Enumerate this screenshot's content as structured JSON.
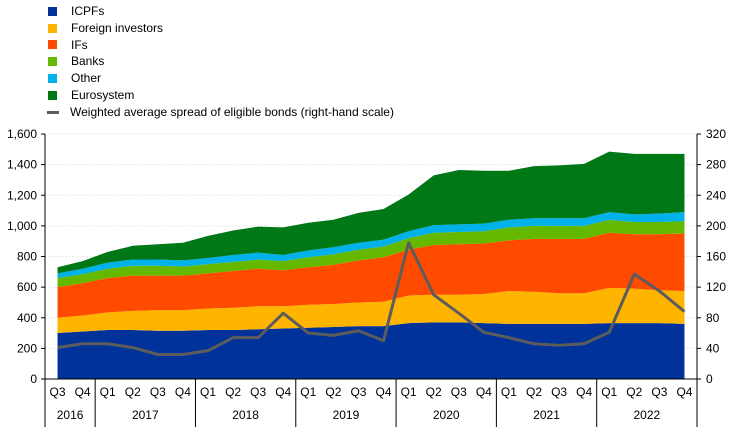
{
  "chart_data": {
    "type": "area",
    "stacked": true,
    "categories": [
      "Q3",
      "Q4",
      "Q1",
      "Q2",
      "Q3",
      "Q4",
      "Q1",
      "Q2",
      "Q3",
      "Q4",
      "Q1",
      "Q2",
      "Q3",
      "Q4",
      "Q1",
      "Q2",
      "Q3",
      "Q4",
      "Q1",
      "Q2",
      "Q3",
      "Q4",
      "Q1",
      "Q2",
      "Q3",
      "Q4"
    ],
    "years": [
      {
        "label": "2016",
        "quarters": 2
      },
      {
        "label": "2017",
        "quarters": 4
      },
      {
        "label": "2018",
        "quarters": 4
      },
      {
        "label": "2019",
        "quarters": 4
      },
      {
        "label": "2020",
        "quarters": 4
      },
      {
        "label": "2021",
        "quarters": 4
      },
      {
        "label": "2022",
        "quarters": 4
      }
    ],
    "ylim": [
      0,
      1600
    ],
    "yticks": [
      0,
      200,
      400,
      600,
      800,
      1000,
      1200,
      1400,
      1600
    ],
    "ytick_labels": [
      "0",
      "200",
      "400",
      "600",
      "800",
      "1,000",
      "1,200",
      "1,400",
      "1,600"
    ],
    "y2lim": [
      0,
      320
    ],
    "y2ticks": [
      0,
      40,
      80,
      120,
      160,
      200,
      240,
      280,
      320
    ],
    "grid": true,
    "legend_position": "top-left",
    "series": [
      {
        "name": "ICPFs",
        "color": "#003299",
        "values": [
          300,
          310,
          320,
          320,
          315,
          315,
          320,
          320,
          325,
          330,
          335,
          340,
          345,
          345,
          365,
          370,
          370,
          365,
          360,
          360,
          360,
          360,
          365,
          365,
          365,
          360
        ]
      },
      {
        "name": "Foreign investors",
        "color": "#FFB400",
        "values": [
          100,
          105,
          115,
          125,
          135,
          135,
          140,
          145,
          150,
          145,
          150,
          150,
          155,
          160,
          180,
          180,
          180,
          190,
          215,
          210,
          200,
          200,
          230,
          225,
          215,
          215
        ]
      },
      {
        "name": "IFs",
        "color": "#FF4B00",
        "values": [
          200,
          210,
          225,
          230,
          225,
          225,
          230,
          240,
          245,
          235,
          245,
          255,
          275,
          290,
          300,
          325,
          330,
          330,
          330,
          345,
          355,
          355,
          360,
          355,
          365,
          375
        ]
      },
      {
        "name": "Banks",
        "color": "#65B800",
        "values": [
          60,
          60,
          60,
          65,
          65,
          60,
          60,
          60,
          60,
          60,
          65,
          70,
          70,
          70,
          75,
          80,
          80,
          80,
          85,
          85,
          85,
          85,
          85,
          80,
          80,
          80
        ]
      },
      {
        "name": "Other",
        "color": "#00B1EA",
        "values": [
          30,
          35,
          40,
          40,
          40,
          40,
          40,
          45,
          45,
          40,
          45,
          45,
          45,
          45,
          45,
          50,
          50,
          50,
          50,
          50,
          50,
          50,
          50,
          50,
          55,
          60
        ]
      },
      {
        "name": "Eurosystem",
        "color": "#007816",
        "values": [
          40,
          50,
          70,
          90,
          100,
          115,
          145,
          160,
          170,
          180,
          180,
          180,
          195,
          200,
          240,
          325,
          355,
          345,
          320,
          340,
          345,
          355,
          395,
          395,
          390,
          380
        ]
      }
    ],
    "line_series": {
      "name": "Weighted average spread of eligible bonds (right-hand scale)",
      "color": "#5C5C5C",
      "axis": "right",
      "values": [
        41,
        46,
        46,
        41,
        32,
        32,
        37,
        54,
        54,
        86,
        60,
        57,
        63,
        50,
        178,
        110,
        86,
        61,
        54,
        46,
        44,
        46,
        61,
        137,
        115,
        88
      ]
    }
  }
}
